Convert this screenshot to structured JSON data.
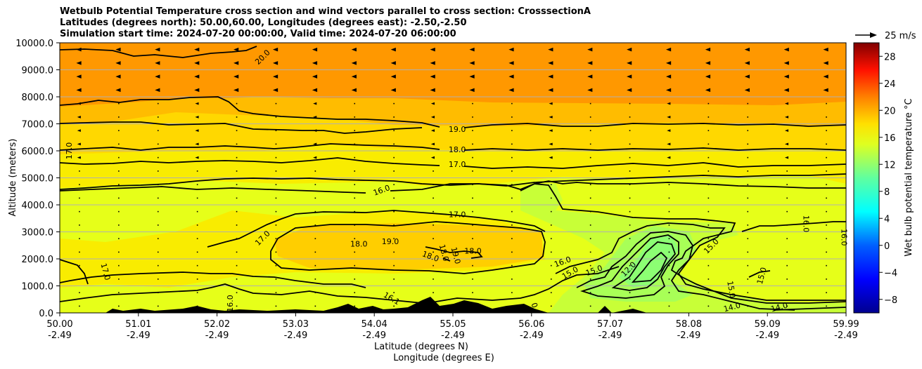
{
  "chart_data": {
    "type": "contour",
    "title_lines": [
      "Wetbulb Potential Temperature cross section and wind vectors parallel to cross section: CrosssectionA",
      "Latitudes (degrees north): 50.00,60.00, Longitudes (degrees east): -2.50,-2.50",
      "Simulation start time: 2024-07-20 00:00:00, Valid time: 2024-07-20 06:00:00"
    ],
    "ylabel": "Altitude (meters)",
    "xlabel_line1": "Latitude (degrees N)",
    "xlabel_line2": "Longitude (degrees E)",
    "ylim": [
      0,
      10000
    ],
    "xlim": [
      50.0,
      59.99
    ],
    "y_ticks": [
      "0.0",
      "1000.0",
      "2000.0",
      "3000.0",
      "4000.0",
      "5000.0",
      "6000.0",
      "7000.0",
      "8000.0",
      "9000.0",
      "10000.0"
    ],
    "x_ticks_lat": [
      "50.00",
      "51.01",
      "52.02",
      "53.03",
      "54.04",
      "55.05",
      "56.06",
      "57.07",
      "58.08",
      "59.09",
      "59.99"
    ],
    "x_ticks_lon": [
      "-2.49",
      "-2.49",
      "-2.49",
      "-2.49",
      "-2.49",
      "-2.49",
      "-2.49",
      "-2.49",
      "-2.49",
      "-2.49",
      "-2.49"
    ],
    "colorbar_label": "Wet bulb potential temperature $^\\circ$C",
    "colorbar_label_display": "Wet bulb potential temperature °C",
    "colorbar_range": [
      -10,
      30
    ],
    "colorbar_ticks": [
      "−8",
      "−4",
      "0",
      "4",
      "8",
      "12",
      "16",
      "20",
      "24",
      "28"
    ],
    "colorbar_tick_values": [
      -8,
      -4,
      0,
      4,
      8,
      12,
      16,
      20,
      24,
      28
    ],
    "quiver_key": "25 m/s",
    "contour_labels": [
      {
        "text": "20.0",
        "lat": 52.6,
        "alt": 9400,
        "angle": -45
      },
      {
        "text": "19.0",
        "lat": 55.05,
        "alt": 6700,
        "angle": 0
      },
      {
        "text": "18.0",
        "lat": 55.05,
        "alt": 5950,
        "angle": 0
      },
      {
        "text": "17.0",
        "lat": 55.05,
        "alt": 5400,
        "angle": 0
      },
      {
        "text": "17.0",
        "lat": 50.15,
        "alt": 6000,
        "angle": -90
      },
      {
        "text": "16.0",
        "lat": 54.1,
        "alt": 4450,
        "angle": -20
      },
      {
        "text": "17.0",
        "lat": 55.05,
        "alt": 3550,
        "angle": 0
      },
      {
        "text": "17.0",
        "lat": 52.6,
        "alt": 2700,
        "angle": -45
      },
      {
        "text": "18.0",
        "lat": 53.8,
        "alt": 2450,
        "angle": 0
      },
      {
        "text": "19.0",
        "lat": 54.2,
        "alt": 2550,
        "angle": 0
      },
      {
        "text": "18.0",
        "lat": 54.85,
        "alt": 2200,
        "angle": 75
      },
      {
        "text": "19.0",
        "lat": 55.0,
        "alt": 2100,
        "angle": 75
      },
      {
        "text": "18.0",
        "lat": 55.25,
        "alt": 2200,
        "angle": 0
      },
      {
        "text": "18.0",
        "lat": 54.7,
        "alt": 2000,
        "angle": 20
      },
      {
        "text": "17.0",
        "lat": 50.55,
        "alt": 1500,
        "angle": 75
      },
      {
        "text": "16.0",
        "lat": 52.2,
        "alt": 350,
        "angle": -90
      },
      {
        "text": "16.1",
        "lat": 54.2,
        "alt": 450,
        "angle": 30
      },
      {
        "text": "16.0",
        "lat": 56.4,
        "alt": 1800,
        "angle": -20
      },
      {
        "text": "15.0",
        "lat": 56.5,
        "alt": 1400,
        "angle": -30
      },
      {
        "text": "15.0",
        "lat": 56.8,
        "alt": 1480,
        "angle": -20
      },
      {
        "text": "12.0",
        "lat": 57.25,
        "alt": 1550,
        "angle": -45
      },
      {
        "text": "15.0",
        "lat": 58.3,
        "alt": 2400,
        "angle": -45
      },
      {
        "text": "15.0",
        "lat": 58.5,
        "alt": 850,
        "angle": 80
      },
      {
        "text": "15.0",
        "lat": 58.95,
        "alt": 1350,
        "angle": -75
      },
      {
        "text": "16.0",
        "lat": 59.45,
        "alt": 3300,
        "angle": 90
      },
      {
        "text": "16.0",
        "lat": 59.93,
        "alt": 2800,
        "angle": 90
      },
      {
        "text": "14.0",
        "lat": 58.55,
        "alt": 120,
        "angle": -15
      },
      {
        "text": "14.0",
        "lat": 59.15,
        "alt": 120,
        "angle": -15
      },
      {
        "text": "0",
        "lat": 56.0,
        "alt": 250,
        "angle": 70
      }
    ]
  }
}
